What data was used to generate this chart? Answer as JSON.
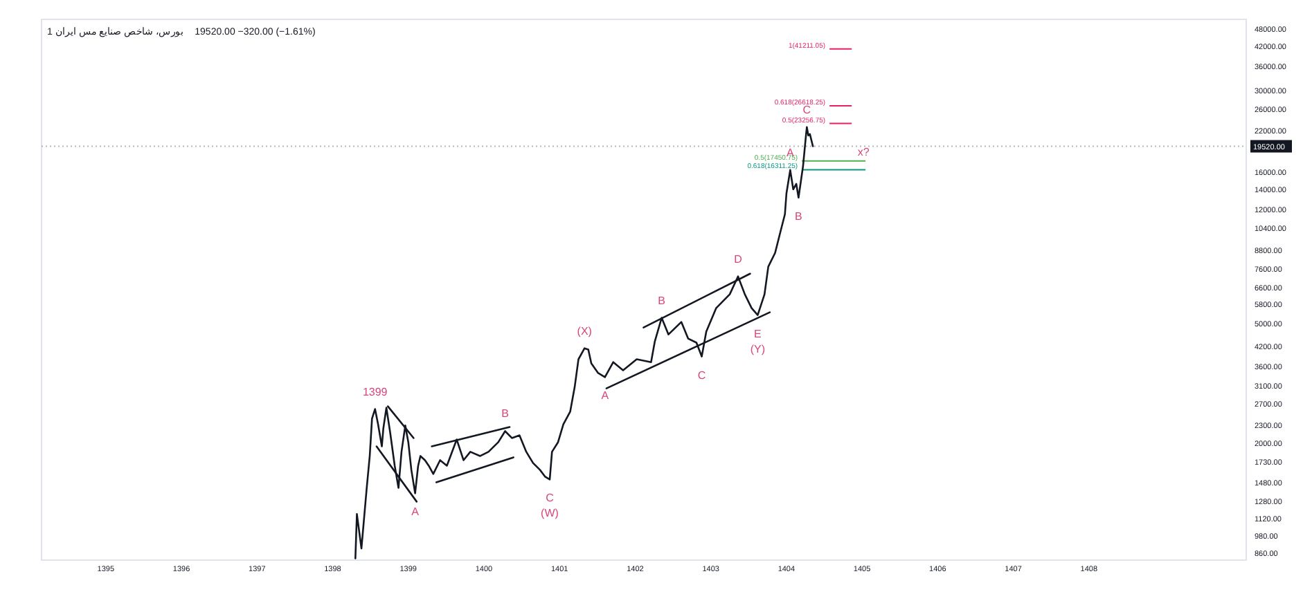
{
  "chart_data": {
    "type": "line",
    "title": "بورس، شاخص صنایع مس ایران 1",
    "subtitle": "19520.00 −320.00 (−1.61%)",
    "log": "y",
    "xlim": [
      1394.15,
      1410.08
    ],
    "ylim": [
      815,
      51700
    ],
    "xticks": [
      1395,
      1396,
      1397,
      1398,
      1399,
      1400,
      1401,
      1402,
      1403,
      1404,
      1405,
      1406,
      1407,
      1408
    ],
    "yticks": [
      {
        "value": 48000,
        "label": "48000.00"
      },
      {
        "value": 42000,
        "label": "42000.00"
      },
      {
        "value": 36000,
        "label": "36000.00"
      },
      {
        "value": 30000,
        "label": "30000.00"
      },
      {
        "value": 26000,
        "label": "26000.00"
      },
      {
        "value": 22000,
        "label": "22000.00"
      },
      {
        "value": 16000,
        "label": "16000.00"
      },
      {
        "value": 14000,
        "label": "14000.00"
      },
      {
        "value": 12000,
        "label": "12000.00"
      },
      {
        "value": 10400,
        "label": "10400.00"
      },
      {
        "value": 8800,
        "label": "8800.00"
      },
      {
        "value": 7600,
        "label": "7600.00"
      },
      {
        "value": 6600,
        "label": "6600.00"
      },
      {
        "value": 5800,
        "label": "5800.00"
      },
      {
        "value": 5000,
        "label": "5000.00"
      },
      {
        "value": 4200,
        "label": "4200.00"
      },
      {
        "value": 3600,
        "label": "3600.00"
      },
      {
        "value": 3100,
        "label": "3100.00"
      },
      {
        "value": 2700,
        "label": "2700.00"
      },
      {
        "value": 2300,
        "label": "2300.00"
      },
      {
        "value": 2000,
        "label": "2000.00"
      },
      {
        "value": 1730,
        "label": "1730.00"
      },
      {
        "value": 1480,
        "label": "1480.00"
      },
      {
        "value": 1280,
        "label": "1280.00"
      },
      {
        "value": 1120,
        "label": "1120.00"
      },
      {
        "value": 980,
        "label": "980.00"
      },
      {
        "value": 860,
        "label": "860.00"
      }
    ],
    "grid": false,
    "series": [
      {
        "color": "#131722",
        "x": [
          1398.3,
          1398.32,
          1398.38,
          1398.45,
          1398.49,
          1398.52,
          1398.56,
          1398.6,
          1398.65,
          1398.67,
          1398.71,
          1398.76,
          1398.82,
          1398.87,
          1398.91,
          1398.96,
          1399.0,
          1399.04,
          1399.09,
          1399.13,
          1399.16,
          1399.22,
          1399.27,
          1399.33,
          1399.42,
          1399.51,
          1399.64,
          1399.73,
          1399.82,
          1399.95,
          1400.06,
          1400.19,
          1400.28,
          1400.37,
          1400.47,
          1400.56,
          1400.65,
          1400.74,
          1400.81,
          1400.87,
          1400.9,
          1400.98,
          1401.05,
          1401.14,
          1401.2,
          1401.25,
          1401.33,
          1401.38,
          1401.42,
          1401.51,
          1401.6,
          1401.71,
          1401.84,
          1402.02,
          1402.21,
          1402.26,
          1402.35,
          1402.44,
          1402.61,
          1402.7,
          1402.81,
          1402.88,
          1402.94,
          1403.07,
          1403.16,
          1403.25,
          1403.36,
          1403.45,
          1403.54,
          1403.62,
          1403.71,
          1403.76,
          1403.85,
          1403.91,
          1403.98,
          1404.0,
          1404.05,
          1404.09,
          1404.13,
          1404.16,
          1404.22,
          1404.26,
          1404.27,
          1404.29,
          1404.31,
          1404.35
        ],
        "values": [
          826,
          1161,
          891,
          1419,
          1812,
          2414,
          2598,
          2312,
          1951,
          2240,
          2625,
          2169,
          1682,
          1419,
          1871,
          2289,
          2015,
          1630,
          1361,
          1682,
          1812,
          1755,
          1682,
          1579,
          1755,
          1682,
          2057,
          1755,
          1871,
          1812,
          1871,
          2015,
          2193,
          2080,
          2124,
          1871,
          1717,
          1630,
          1545,
          1513,
          1871,
          2015,
          2312,
          2545,
          3078,
          3808,
          4142,
          4101,
          3688,
          3425,
          3318,
          3725,
          3498,
          3808,
          3725,
          4370,
          5233,
          4606,
          5069,
          4464,
          4325,
          3889,
          4709,
          5635,
          5942,
          6268,
          7191,
          6268,
          5635,
          5347,
          6268,
          7747,
          8611,
          9888,
          11592,
          13590,
          16267,
          14030,
          14635,
          13162,
          16795,
          21437,
          22608,
          21206,
          21437,
          19520
        ]
      },
      {
        "color": "#131722",
        "x": [
          1398.73,
          1399.07
        ],
        "values": [
          2653,
          2080
        ]
      },
      {
        "color": "#131722",
        "x": [
          1398.58,
          1399.11
        ],
        "values": [
          1951,
          1277
        ]
      },
      {
        "color": "#131722",
        "x": [
          1399.31,
          1400.34
        ],
        "values": [
          1951,
          2264
        ]
      },
      {
        "color": "#131722",
        "x": [
          1399.37,
          1400.39
        ],
        "values": [
          1481,
          1793
        ]
      },
      {
        "color": "#131722",
        "x": [
          1402.11,
          1403.52
        ],
        "values": [
          4857,
          7343
        ]
      },
      {
        "color": "#131722",
        "x": [
          1401.62,
          1403.78
        ],
        "values": [
          3046,
          5459
        ]
      }
    ],
    "ref_lines": [
      {
        "axis": "y",
        "value": 19520,
        "label": "19520.00",
        "color": "#b2b5be",
        "line_style": "dotted"
      },
      {
        "axis": "y",
        "value": 41211.05,
        "label": "1(41211.05)",
        "color": "#e91e63",
        "line_style": "solid"
      },
      {
        "axis": "y",
        "value": 26618.25,
        "label": "0.618(26618.25)",
        "color": "#e91e63",
        "line_style": "solid"
      },
      {
        "axis": "y",
        "value": 23256.75,
        "label": "0.5(23256.75)",
        "color": "#e91e63",
        "line_style": "solid"
      },
      {
        "axis": "y",
        "value": 17450.75,
        "label": "0.5(17450.75)",
        "color": "#4caf50",
        "line_style": "solid"
      },
      {
        "axis": "y",
        "value": 16311.25,
        "label": "0.618(16311.25)",
        "color": "#089981",
        "line_style": "solid"
      }
    ],
    "annotations": [
      {
        "text": "1399",
        "x": 1398.56,
        "y": 2598
      },
      {
        "text": "A",
        "x": 1399.09,
        "y": 1361
      },
      {
        "text": "B",
        "x": 1400.28,
        "y": 2193
      },
      {
        "text": "C",
        "x": 1400.87,
        "y": 1513
      },
      {
        "text": "(W)",
        "x": 1400.87,
        "y": 1513
      },
      {
        "text": "(X)",
        "x": 1401.33,
        "y": 4142
      },
      {
        "text": "A",
        "x": 1401.6,
        "y": 3318
      },
      {
        "text": "B",
        "x": 1402.35,
        "y": 5233
      },
      {
        "text": "C",
        "x": 1402.88,
        "y": 3889
      },
      {
        "text": "D",
        "x": 1403.36,
        "y": 7191
      },
      {
        "text": "E",
        "x": 1403.62,
        "y": 5347
      },
      {
        "text": "(Y)",
        "x": 1403.62,
        "y": 5347
      },
      {
        "text": "A",
        "x": 1404.05,
        "y": 16267
      },
      {
        "text": "B",
        "x": 1404.16,
        "y": 13162
      },
      {
        "text": "C",
        "x": 1404.27,
        "y": 22608
      },
      {
        "text": "x?",
        "x": 1405.02,
        "y": 16311.25
      }
    ]
  }
}
